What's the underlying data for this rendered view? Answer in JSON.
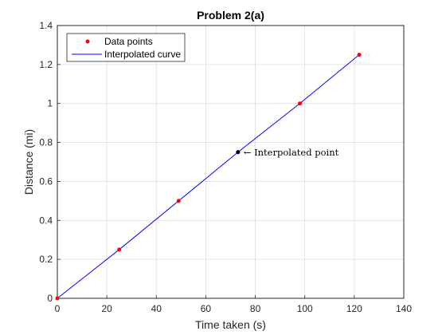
{
  "chart_data": {
    "type": "line",
    "title": "Problem 2(a)",
    "xlabel": "Time taken (s)",
    "ylabel": "Distance (mi)",
    "xlim": [
      0,
      140
    ],
    "ylim": [
      0,
      1.4
    ],
    "xticks": [
      0,
      20,
      40,
      60,
      80,
      100,
      120,
      140
    ],
    "yticks": [
      0,
      0.2,
      0.4,
      0.6,
      0.8,
      1,
      1.2,
      1.4
    ],
    "grid": true,
    "legend_position": "top-left",
    "series": [
      {
        "name": "Data points",
        "style": "markers",
        "color": "#ff0000",
        "x": [
          0,
          25,
          49,
          73,
          98,
          122
        ],
        "y": [
          0,
          0.25,
          0.5,
          0.75,
          1.0,
          1.25
        ]
      },
      {
        "name": "Interpolated curve",
        "style": "line",
        "color": "#0000ff",
        "x": [
          0,
          25,
          49,
          73,
          98,
          122
        ],
        "y": [
          0,
          0.25,
          0.5,
          0.75,
          1.0,
          1.25
        ]
      }
    ],
    "annotations": [
      {
        "text": "← Interpolated point",
        "x": 73,
        "y": 0.75,
        "marker_color": "#000000"
      }
    ]
  }
}
